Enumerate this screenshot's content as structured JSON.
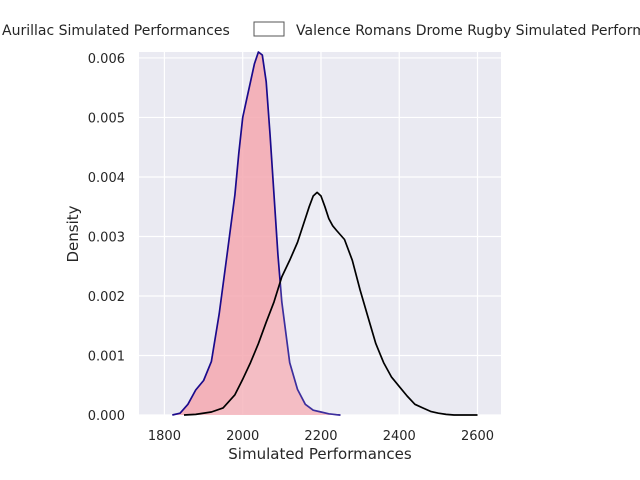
{
  "chart_data": {
    "type": "area",
    "title": "",
    "xlabel": "Simulated Performances",
    "ylabel": "Density",
    "xlim": [
      1735,
      2660
    ],
    "ylim": [
      0,
      0.0061
    ],
    "x_ticks": [
      1800,
      2000,
      2200,
      2400,
      2600
    ],
    "x_tick_labels": [
      "1800",
      "2000",
      "2200",
      "2400",
      "2600"
    ],
    "y_ticks": [
      0,
      0.001,
      0.002,
      0.003,
      0.004,
      0.005,
      0.006
    ],
    "y_tick_labels": [
      "0.000",
      "0.001",
      "0.002",
      "0.003",
      "0.004",
      "0.005",
      "0.006"
    ],
    "grid": true,
    "legend_position": "top",
    "background": "#eaeaf2",
    "series": [
      {
        "name": "Aurillac Simulated Performances",
        "fill": "#f4a8b0",
        "line": "#1a0a8c",
        "filled": true,
        "x": [
          1820,
          1840,
          1860,
          1880,
          1900,
          1920,
          1940,
          1960,
          1980,
          1990,
          2000,
          2010,
          2020,
          2030,
          2040,
          2050,
          2060,
          2070,
          2080,
          2090,
          2100,
          2120,
          2140,
          2160,
          2180,
          2200,
          2220,
          2240,
          2250
        ],
        "y": [
          0.0,
          3e-05,
          0.00018,
          0.00042,
          0.00058,
          0.0009,
          0.0017,
          0.0027,
          0.0037,
          0.0044,
          0.005,
          0.0053,
          0.0056,
          0.0059,
          0.0061,
          0.00605,
          0.0056,
          0.0047,
          0.0037,
          0.0027,
          0.0019,
          0.00088,
          0.00043,
          0.00018,
          8e-05,
          5e-05,
          2e-05,
          5e-06,
          0.0
        ]
      },
      {
        "name": "Valence Romans Drome Rugby Simulated Performances",
        "fill": "none",
        "line": "#000000",
        "filled": false,
        "x": [
          1850,
          1880,
          1920,
          1950,
          1980,
          2000,
          2020,
          2040,
          2060,
          2080,
          2100,
          2120,
          2140,
          2160,
          2170,
          2180,
          2190,
          2200,
          2210,
          2220,
          2230,
          2240,
          2260,
          2280,
          2300,
          2320,
          2340,
          2360,
          2380,
          2400,
          2420,
          2440,
          2460,
          2480,
          2500,
          2520,
          2540,
          2560,
          2580,
          2600
        ],
        "y": [
          0.0,
          1e-05,
          5e-05,
          0.00012,
          0.00034,
          0.0006,
          0.00088,
          0.0012,
          0.00156,
          0.0019,
          0.00232,
          0.0026,
          0.0029,
          0.0033,
          0.0035,
          0.00368,
          0.00374,
          0.00368,
          0.0035,
          0.0033,
          0.00318,
          0.0031,
          0.00295,
          0.0026,
          0.0021,
          0.00165,
          0.0012,
          0.00088,
          0.00064,
          0.00048,
          0.00032,
          0.00018,
          0.00012,
          6e-05,
          3e-05,
          1e-05,
          0.0,
          0.0,
          0.0,
          0.0
        ]
      }
    ]
  }
}
